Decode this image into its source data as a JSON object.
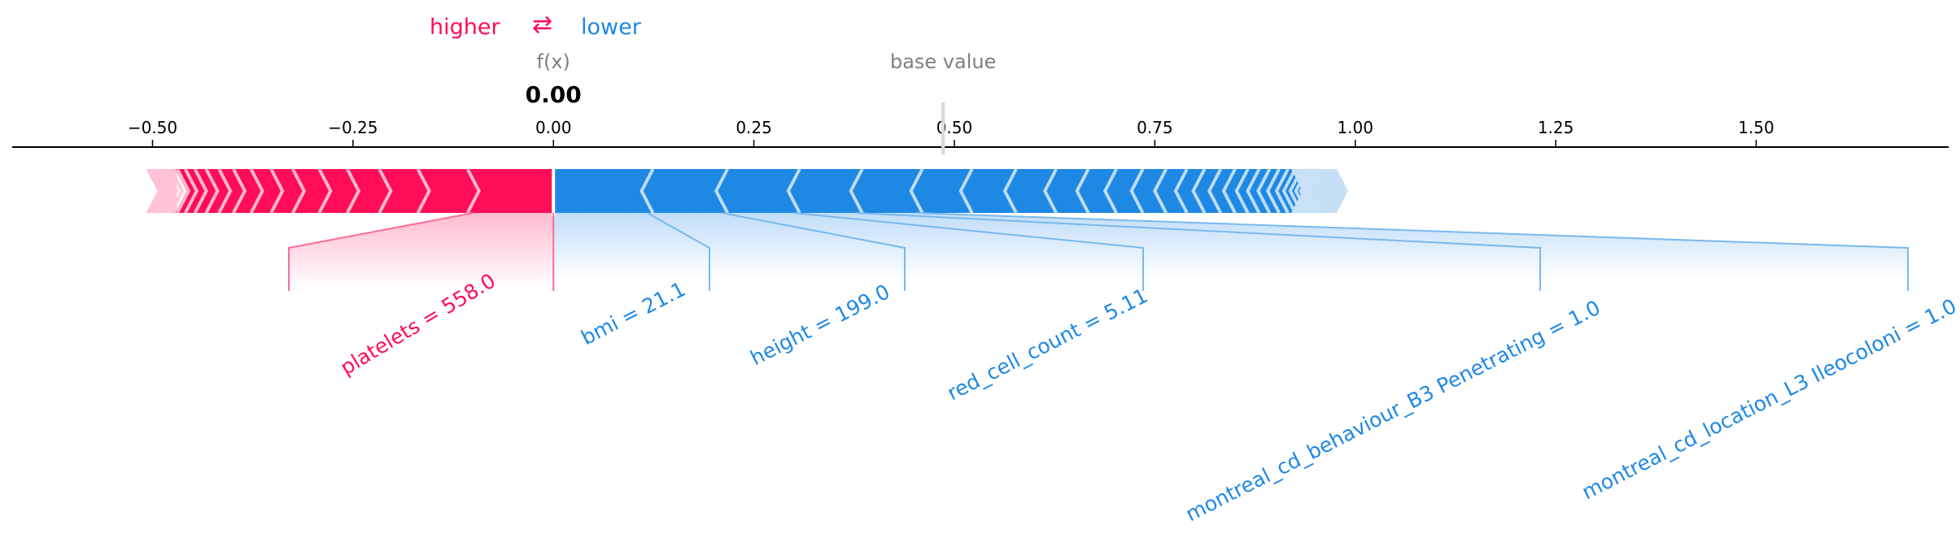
{
  "legend": {
    "higher_label": "higher",
    "arrows_glyph": "⇄",
    "lower_label": "lower",
    "higher_color": "#ff0d57",
    "lower_color": "#1e88e5"
  },
  "chart_data": {
    "type": "force",
    "output_label": "f(x)",
    "output_value": 0.0,
    "output_value_text": "0.00",
    "base_value_label": "base value",
    "base_value": 0.486,
    "xlim": [
      -0.675,
      1.74
    ],
    "ticks": [
      -0.5,
      -0.25,
      0.0,
      0.25,
      0.5,
      0.75,
      1.0,
      1.25,
      1.5
    ],
    "tick_labels": [
      "−0.50",
      "−0.25",
      "0.00",
      "0.25",
      "0.50",
      "0.75",
      "1.00",
      "1.25",
      "1.50"
    ],
    "push_higher_extent": [
      -0.5,
      0.0
    ],
    "push_lower_extent": [
      0.0,
      0.985
    ],
    "features": [
      {
        "label": "platelets = 558.0",
        "direction": "higher",
        "value_start": -0.1,
        "value_end": 0.0
      },
      {
        "label": "bmi = 21.1",
        "direction": "lower",
        "value_start": 0.0,
        "value_end": 0.117
      },
      {
        "label": "height = 199.0",
        "direction": "lower",
        "value_start": 0.117,
        "value_end": 0.21
      },
      {
        "label": "red_cell_count = 5.11",
        "direction": "lower",
        "value_start": 0.21,
        "value_end": 0.3
      },
      {
        "label": "montreal_cd_behaviour_B3 Penetrating = 1.0",
        "direction": "lower",
        "value_start": 0.3,
        "value_end": 0.378
      },
      {
        "label": "montreal_cd_location_L3 Ileocoloni = 1.0",
        "direction": "lower",
        "value_start": 0.378,
        "value_end": 0.453
      }
    ]
  }
}
